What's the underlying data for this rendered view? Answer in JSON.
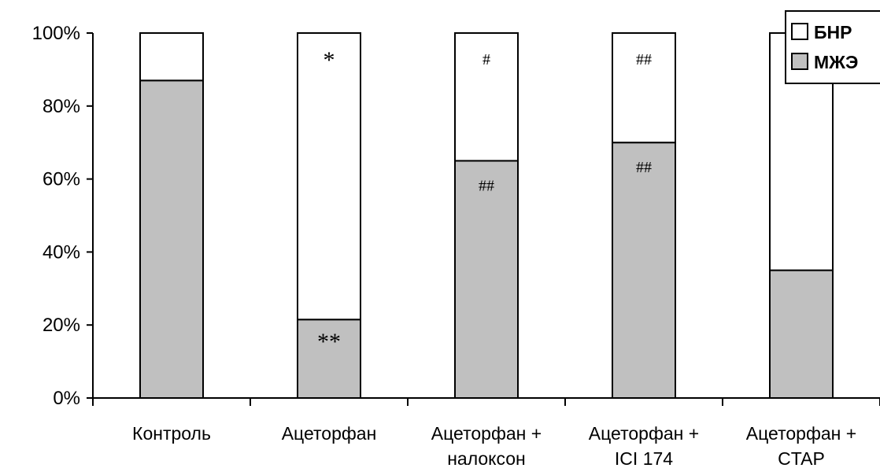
{
  "chart_data": {
    "type": "bar",
    "stacked": true,
    "categories": [
      [
        "Контроль"
      ],
      [
        "Ацеторфан"
      ],
      [
        "Ацеторфан +",
        "налоксон"
      ],
      [
        "Ацеторфан +",
        "ICI 174"
      ],
      [
        "Ацеторфан +",
        "CTAP"
      ]
    ],
    "series": [
      {
        "name": "МЖЭ",
        "color": "#c0c0c0",
        "values": [
          87,
          21.5,
          65,
          70,
          35
        ]
      },
      {
        "name": "БНР",
        "color": "#ffffff",
        "values": [
          13,
          78.5,
          35,
          30,
          65
        ]
      }
    ],
    "ylim": [
      0,
      100
    ],
    "yticks": [
      "0%",
      "20%",
      "40%",
      "60%",
      "80%",
      "100%"
    ],
    "grid": false,
    "legend_position": "top-right",
    "legend_order": [
      "БНР",
      "МЖЭ"
    ],
    "annotations": [
      {
        "category": 1,
        "segment": "БНР",
        "text": "*"
      },
      {
        "category": 1,
        "segment": "МЖЭ",
        "text": "**"
      },
      {
        "category": 2,
        "segment": "БНР",
        "text": "#"
      },
      {
        "category": 2,
        "segment": "МЖЭ",
        "text": "##"
      },
      {
        "category": 3,
        "segment": "БНР",
        "text": "##"
      },
      {
        "category": 3,
        "segment": "МЖЭ",
        "text": "##"
      }
    ]
  }
}
